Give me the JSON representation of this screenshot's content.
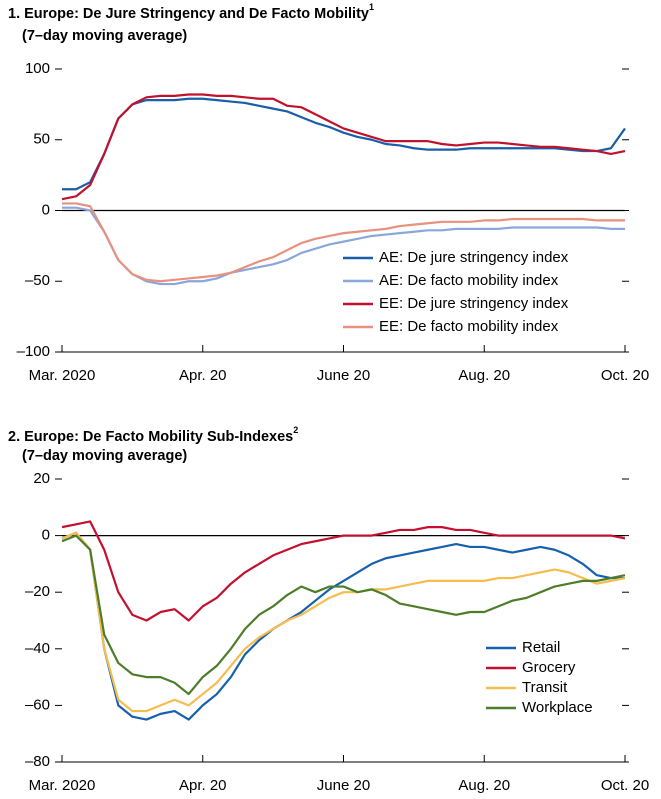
{
  "chart_data": [
    {
      "type": "line",
      "title": "1. Europe: De Jure Stringency and De Facto Mobility",
      "title_footnote": "1",
      "subtitle": "(7–day moving average)",
      "categories": [
        "Mar. 2020",
        null,
        null,
        null,
        null,
        null,
        null,
        null,
        null,
        null,
        "Apr. 20",
        null,
        null,
        null,
        null,
        null,
        null,
        null,
        null,
        null,
        "June 20",
        null,
        null,
        null,
        null,
        null,
        null,
        null,
        null,
        null,
        "Aug. 20",
        null,
        null,
        null,
        null,
        null,
        null,
        null,
        null,
        null,
        "Oct. 20"
      ],
      "ylim": [
        -100,
        100
      ],
      "yticks": [
        {
          "value": -100,
          "label": "–100"
        },
        {
          "value": -50,
          "label": "–50"
        },
        0,
        50,
        100
      ],
      "legend": "lower right",
      "series": [
        {
          "name": "AE: De jure stringency index",
          "color": "#1a5ea8",
          "values": [
            15,
            15,
            20,
            40,
            65,
            75,
            78,
            78,
            78,
            79,
            79,
            78,
            77,
            76,
            74,
            72,
            70,
            66,
            62,
            59,
            55,
            52,
            50,
            47,
            46,
            44,
            43,
            43,
            43,
            44,
            44,
            44,
            44,
            44,
            44,
            44,
            43,
            42,
            42,
            44,
            58
          ]
        },
        {
          "name": "AE: De facto mobility index",
          "color": "#8aa7dc",
          "values": [
            2,
            2,
            0,
            -15,
            -35,
            -45,
            -50,
            -52,
            -52,
            -50,
            -50,
            -48,
            -44,
            -42,
            -40,
            -38,
            -35,
            -30,
            -27,
            -24,
            -22,
            -20,
            -18,
            -17,
            -16,
            -15,
            -14,
            -14,
            -13,
            -13,
            -13,
            -13,
            -12,
            -12,
            -12,
            -12,
            -12,
            -12,
            -12,
            -13,
            -13
          ]
        },
        {
          "name": "EE: De jure stringency index",
          "color": "#c0122c",
          "values": [
            8,
            10,
            18,
            40,
            65,
            75,
            80,
            81,
            81,
            82,
            82,
            81,
            81,
            80,
            79,
            79,
            74,
            73,
            68,
            63,
            58,
            55,
            52,
            49,
            49,
            49,
            49,
            47,
            46,
            47,
            48,
            48,
            47,
            46,
            45,
            45,
            44,
            43,
            42,
            40,
            42
          ]
        },
        {
          "name": "EE: De facto mobility index",
          "color": "#e8917f",
          "values": [
            5,
            5,
            3,
            -15,
            -35,
            -45,
            -49,
            -50,
            -49,
            -48,
            -47,
            -46,
            -44,
            -40,
            -36,
            -33,
            -28,
            -23,
            -20,
            -18,
            -16,
            -15,
            -14,
            -13,
            -11,
            -10,
            -9,
            -8,
            -8,
            -8,
            -7,
            -7,
            -6,
            -6,
            -6,
            -6,
            -6,
            -6,
            -7,
            -7,
            -7
          ]
        }
      ]
    },
    {
      "type": "line",
      "title": "2. Europe: De Facto Mobility Sub-Indexes",
      "title_footnote": "2",
      "subtitle": "(7–day moving average)",
      "categories": [
        "Mar. 2020",
        null,
        null,
        null,
        null,
        null,
        null,
        null,
        null,
        null,
        "Apr. 20",
        null,
        null,
        null,
        null,
        null,
        null,
        null,
        null,
        null,
        "June 20",
        null,
        null,
        null,
        null,
        null,
        null,
        null,
        null,
        null,
        "Aug. 20",
        null,
        null,
        null,
        null,
        null,
        null,
        null,
        null,
        null,
        "Oct. 20"
      ],
      "ylim": [
        -80,
        20
      ],
      "yticks": [
        {
          "value": -80,
          "label": "–80"
        },
        {
          "value": -60,
          "label": "–60"
        },
        {
          "value": -40,
          "label": "–40"
        },
        {
          "value": -20,
          "label": "–20"
        },
        0,
        20
      ],
      "legend": "lower right",
      "series": [
        {
          "name": "Retail",
          "color": "#1660ad",
          "values": [
            -1,
            1,
            -5,
            -40,
            -60,
            -64,
            -65,
            -63,
            -62,
            -65,
            -60,
            -56,
            -50,
            -42,
            -37,
            -33,
            -30,
            -27,
            -23,
            -19,
            -16,
            -13,
            -10,
            -8,
            -7,
            -6,
            -5,
            -4,
            -3,
            -4,
            -4,
            -5,
            -6,
            -5,
            -4,
            -5,
            -7,
            -10,
            -14,
            -15,
            -15
          ]
        },
        {
          "name": "Grocery",
          "color": "#c3102f",
          "values": [
            3,
            4,
            5,
            -5,
            -20,
            -28,
            -30,
            -27,
            -26,
            -30,
            -25,
            -22,
            -17,
            -13,
            -10,
            -7,
            -5,
            -3,
            -2,
            -1,
            0,
            0,
            0,
            1,
            2,
            2,
            3,
            3,
            2,
            2,
            1,
            0,
            0,
            0,
            0,
            0,
            0,
            0,
            0,
            0,
            -1
          ]
        },
        {
          "name": "Transit",
          "color": "#f6bd4e",
          "values": [
            -1,
            1,
            -5,
            -40,
            -58,
            -62,
            -62,
            -60,
            -58,
            -60,
            -56,
            -52,
            -46,
            -40,
            -36,
            -33,
            -30,
            -28,
            -25,
            -22,
            -20,
            -20,
            -19,
            -19,
            -18,
            -17,
            -16,
            -16,
            -16,
            -16,
            -16,
            -15,
            -15,
            -14,
            -13,
            -12,
            -13,
            -15,
            -17,
            -16,
            -15
          ]
        },
        {
          "name": "Workplace",
          "color": "#4e7d2a",
          "values": [
            -2,
            0,
            -5,
            -35,
            -45,
            -49,
            -50,
            -50,
            -52,
            -56,
            -50,
            -46,
            -40,
            -33,
            -28,
            -25,
            -21,
            -18,
            -20,
            -18,
            -18,
            -20,
            -19,
            -21,
            -24,
            -25,
            -26,
            -27,
            -28,
            -27,
            -27,
            -25,
            -23,
            -22,
            -20,
            -18,
            -17,
            -16,
            -16,
            -15,
            -14
          ]
        }
      ]
    }
  ]
}
